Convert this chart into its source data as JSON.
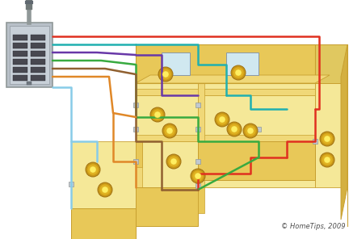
{
  "background_color": "#ffffff",
  "figsize": [
    4.32,
    2.96
  ],
  "dpi": 100,
  "wall_color_top": "#f0d878",
  "wall_color_face": "#e8c858",
  "wall_color_side": "#d4b040",
  "wall_edge_color": "#c8a030",
  "floor_color": "#f5e898",
  "panel_color": "#b8c0c8",
  "panel_edge_color": "#909898",
  "light_outer": "#d4aa20",
  "light_mid": "#e8c830",
  "light_inner": "#ffee60",
  "outlet_color": "#c0c8d0",
  "outlet_edge": "#909898",
  "wire_colors": {
    "red": "#e03020",
    "blue": "#30a8d8",
    "teal": "#20b0b0",
    "green": "#38aa40",
    "brown": "#906030",
    "orange": "#e08828",
    "purple": "#6838a8",
    "ltblue": "#88cce8"
  },
  "copyright_text": "© HomeTips, 2009",
  "copyright_color": "#505050",
  "copyright_fontsize": 6.0
}
